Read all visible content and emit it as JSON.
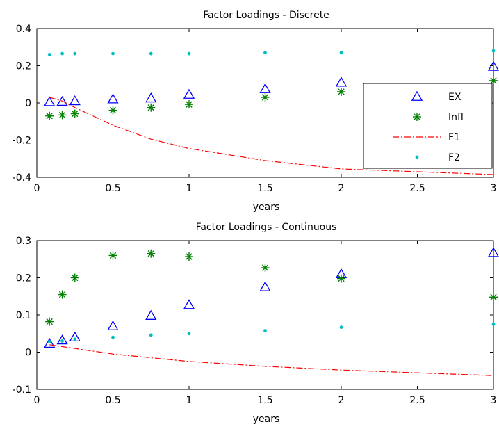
{
  "chart_data": [
    {
      "type": "scatter",
      "title": "Factor Loadings - Discrete",
      "xlabel": "years",
      "ylabel": "",
      "xlim": [
        0,
        3
      ],
      "ylim": [
        -0.4,
        0.4
      ],
      "xticks": [
        "0",
        "0.5",
        "1",
        "1.5",
        "2",
        "2.5",
        "3"
      ],
      "yticks": [
        "-0.4",
        "-0.2",
        "0",
        "0.2",
        "0.4"
      ],
      "grid": false,
      "legend_position": "right",
      "series": [
        {
          "name": "EX",
          "marker": "triangle",
          "color": "#0000ff",
          "x": [
            0.083,
            0.167,
            0.25,
            0.5,
            0.75,
            1,
            1.5,
            2,
            3
          ],
          "y": [
            0.005,
            0.007,
            0.01,
            0.02,
            0.025,
            0.045,
            0.075,
            0.11,
            0.195
          ]
        },
        {
          "name": "Infl",
          "marker": "asterisk",
          "color": "#008000",
          "x": [
            0.083,
            0.167,
            0.25,
            0.5,
            0.75,
            1,
            1.5,
            2,
            3
          ],
          "y": [
            -0.07,
            -0.065,
            -0.058,
            -0.04,
            -0.025,
            -0.008,
            0.03,
            0.06,
            0.12
          ]
        },
        {
          "name": "F1",
          "marker": "dash-dot-line",
          "color": "#ff0000",
          "x": [
            0.083,
            0.167,
            0.25,
            0.5,
            0.75,
            1,
            1.5,
            2,
            3
          ],
          "y": [
            0.03,
            0.01,
            -0.025,
            -0.12,
            -0.195,
            -0.245,
            -0.31,
            -0.355,
            -0.385
          ]
        },
        {
          "name": "F2",
          "marker": "dot",
          "color": "#00bfbf",
          "x": [
            0.083,
            0.167,
            0.25,
            0.5,
            0.75,
            1,
            1.5,
            2,
            3
          ],
          "y": [
            0.26,
            0.265,
            0.265,
            0.265,
            0.265,
            0.265,
            0.27,
            0.27,
            0.28
          ]
        }
      ]
    },
    {
      "type": "scatter",
      "title": "Factor Loadings - Continuous",
      "xlabel": "years",
      "ylabel": "",
      "xlim": [
        0,
        3
      ],
      "ylim": [
        -0.1,
        0.3
      ],
      "xticks": [
        "0",
        "0.5",
        "1",
        "1.5",
        "2",
        "2.5",
        "3"
      ],
      "yticks": [
        "-0.1",
        "0",
        "0.1",
        "0.2",
        "0.3"
      ],
      "grid": false,
      "series": [
        {
          "name": "EX",
          "marker": "triangle",
          "color": "#0000ff",
          "x": [
            0.083,
            0.167,
            0.25,
            0.5,
            0.75,
            1,
            1.5,
            2,
            3
          ],
          "y": [
            0.023,
            0.032,
            0.04,
            0.07,
            0.098,
            0.127,
            0.175,
            0.21,
            0.267
          ]
        },
        {
          "name": "Infl",
          "marker": "asterisk",
          "color": "#008000",
          "x": [
            0.083,
            0.167,
            0.25,
            0.5,
            0.75,
            1,
            1.5,
            2,
            3
          ],
          "y": [
            0.082,
            0.155,
            0.2,
            0.26,
            0.265,
            0.257,
            0.227,
            0.198,
            0.148
          ]
        },
        {
          "name": "F1",
          "marker": "dash-dot-line",
          "color": "#ff0000",
          "x": [
            0.083,
            0.167,
            0.25,
            0.5,
            0.75,
            1,
            1.5,
            2,
            3
          ],
          "y": [
            0.02,
            0.015,
            0.01,
            -0.005,
            -0.015,
            -0.025,
            -0.038,
            -0.048,
            -0.063
          ]
        },
        {
          "name": "F2",
          "marker": "dot",
          "color": "#00bfbf",
          "x": [
            0.083,
            0.167,
            0.25,
            0.5,
            0.75,
            1,
            1.5,
            2,
            3
          ],
          "y": [
            0.028,
            0.03,
            0.035,
            0.04,
            0.046,
            0.05,
            0.058,
            0.067,
            0.075
          ]
        }
      ]
    }
  ]
}
